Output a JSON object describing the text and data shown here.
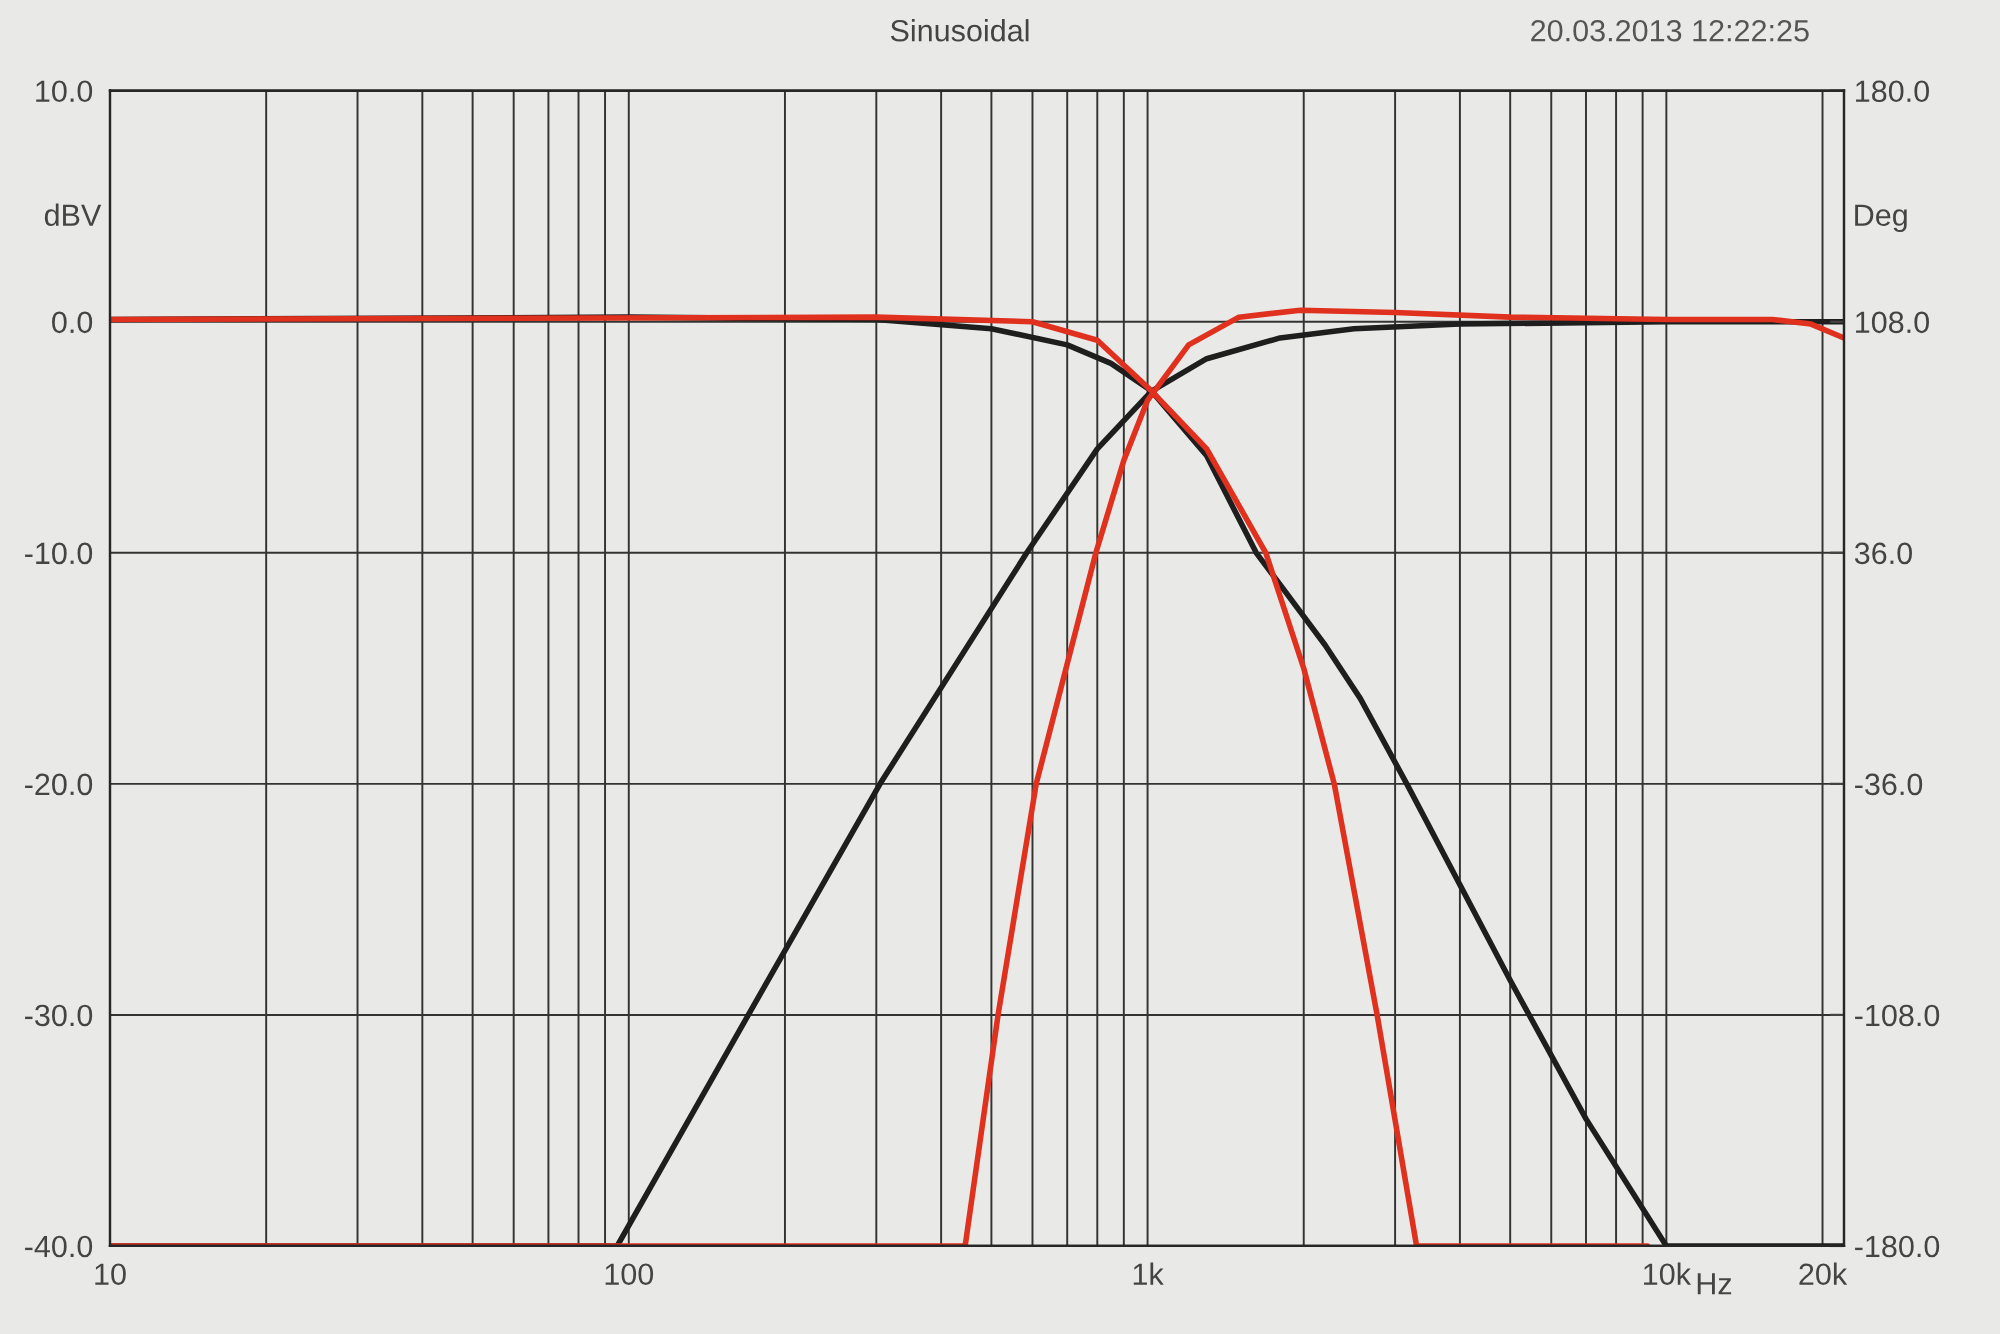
{
  "chart_data": {
    "type": "line",
    "title": "Sinusoidal",
    "xlabel": "Hz",
    "ylabel": "dBV",
    "y2label": "Deg",
    "annotations": [
      "20.03.2013 12:22:25"
    ],
    "log": "x",
    "grid": true,
    "legend": false,
    "marker": "none",
    "line_style": "solid",
    "xlim": [
      10,
      22000
    ],
    "xticks": [
      10,
      {
        "value": 20,
        "label": null
      },
      {
        "value": 30,
        "label": null
      },
      {
        "value": 40,
        "label": null
      },
      {
        "value": 50,
        "label": null
      },
      {
        "value": 60,
        "label": null
      },
      {
        "value": 70,
        "label": null
      },
      {
        "value": 80,
        "label": null
      },
      {
        "value": 90,
        "label": null
      },
      100,
      {
        "value": 200,
        "label": null
      },
      {
        "value": 300,
        "label": null
      },
      {
        "value": 400,
        "label": null
      },
      {
        "value": 500,
        "label": null
      },
      {
        "value": 600,
        "label": null
      },
      {
        "value": 700,
        "label": null
      },
      {
        "value": 800,
        "label": null
      },
      {
        "value": 900,
        "label": null
      },
      {
        "value": 1000,
        "label": "1k"
      },
      {
        "value": 2000,
        "label": null
      },
      {
        "value": 3000,
        "label": null
      },
      {
        "value": 4000,
        "label": null
      },
      {
        "value": 5000,
        "label": null
      },
      {
        "value": 6000,
        "label": null
      },
      {
        "value": 7000,
        "label": null
      },
      {
        "value": 8000,
        "label": null
      },
      {
        "value": 9000,
        "label": null
      },
      {
        "value": 10000,
        "label": "10k"
      },
      {
        "value": 20000,
        "label": "20k"
      }
    ],
    "ylim": [
      -40,
      10
    ],
    "yticks": [
      {
        "value": -40,
        "label": "-40.0"
      },
      {
        "value": -30,
        "label": "-30.0"
      },
      {
        "value": -20,
        "label": "-20.0"
      },
      {
        "value": -10,
        "label": "-10.0"
      },
      {
        "value": 0,
        "label": "0.0"
      },
      {
        "value": 10,
        "label": "10.0"
      }
    ],
    "y2lim": [
      -180,
      180
    ],
    "y2ticks": [
      {
        "value": -180,
        "label": "-180.0"
      },
      {
        "value": -108,
        "label": "-108.0"
      },
      {
        "value": -36,
        "label": "-36.0"
      },
      {
        "value": 36,
        "label": "36.0"
      },
      {
        "value": 108,
        "label": "108.0"
      },
      {
        "value": 180,
        "label": "180.0"
      }
    ],
    "series": [
      {
        "color": "#1e1e1e",
        "x": [
          10,
          100,
          300,
          500,
          700,
          850,
          1018,
          1300,
          1620,
          2200,
          2570,
          3160,
          5000,
          7000,
          10000,
          22000
        ],
        "values": [
          0.1,
          0.2,
          0.1,
          -0.3,
          -1,
          -1.8,
          -3,
          -5.8,
          -10,
          -14,
          -16.3,
          -20,
          -28.5,
          -34.5,
          -40,
          -40
        ]
      },
      {
        "color": "#1e1e1e",
        "x": [
          10,
          95,
          170,
          305,
          585,
          800,
          1018,
          1300,
          1800,
          2500,
          4000,
          10000,
          22000
        ],
        "values": [
          -40,
          -40,
          -30,
          -20,
          -10,
          -5.5,
          -3,
          -1.6,
          -0.7,
          -0.3,
          -0.1,
          0,
          0
        ]
      },
      {
        "color": "#e0301e",
        "x": [
          10,
          300,
          600,
          800,
          1018,
          1300,
          1690,
          2000,
          2290,
          2770,
          3300,
          9200
        ],
        "values": [
          0.1,
          0.2,
          0,
          -0.8,
          -3,
          -5.5,
          -10,
          -15,
          -20,
          -30,
          -40,
          -40
        ]
      },
      {
        "color": "#e0301e",
        "x": [
          10,
          445,
          515,
          610,
          795,
          900,
          1000,
          1200,
          1500,
          1970,
          3000,
          5000,
          10000,
          16000,
          19000,
          22000
        ],
        "values": [
          -40,
          -40,
          -30,
          -20,
          -10,
          -6,
          -3.4,
          -1,
          0.2,
          0.5,
          0.4,
          0.2,
          0.1,
          0.1,
          -0.1,
          -0.7
        ]
      }
    ]
  }
}
